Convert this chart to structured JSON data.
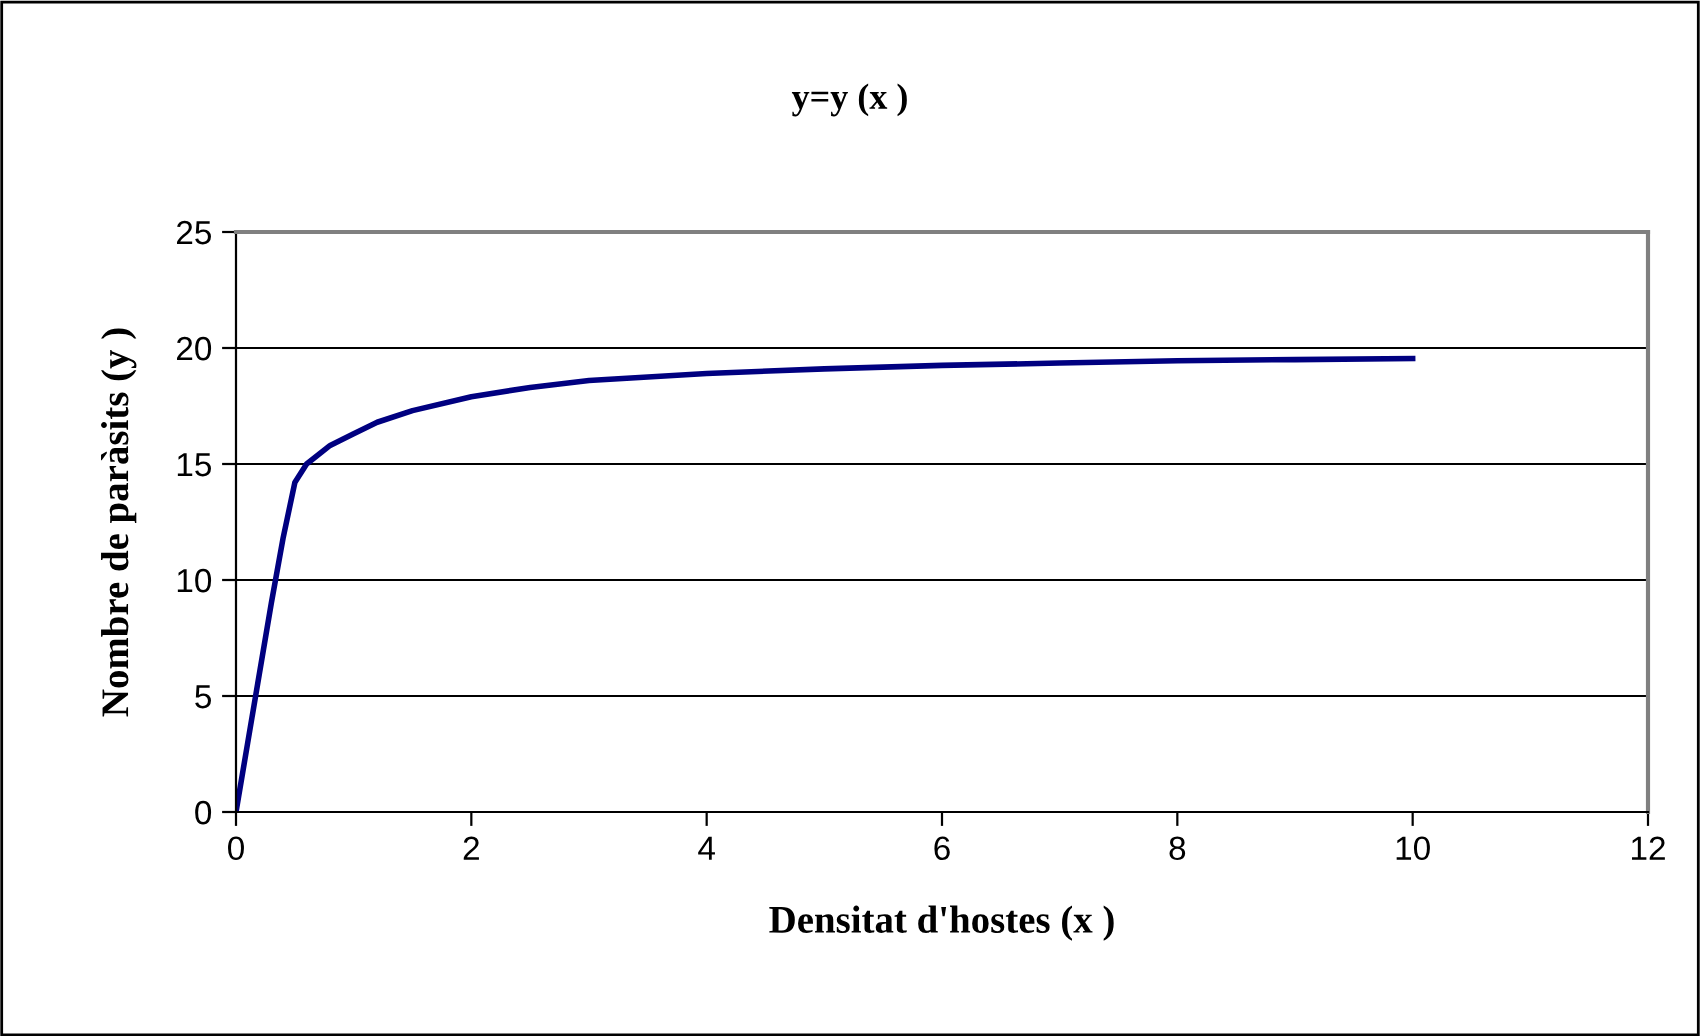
{
  "chart_data": {
    "type": "line",
    "title": "y=y (x )",
    "xlabel": "Densitat d'hostes (x )",
    "ylabel": "Nombre de paràsits (y )",
    "x": [
      0,
      0.1,
      0.2,
      0.3,
      0.4,
      0.5,
      0.6,
      0.8,
      1.0,
      1.2,
      1.5,
      2,
      2.5,
      3,
      4,
      5,
      6,
      7,
      8,
      9,
      10
    ],
    "series": [
      {
        "color": "#000080",
        "values": [
          0,
          3,
          6,
          9,
          11.8,
          14.2,
          15,
          15.8,
          16.3,
          16.8,
          17.3,
          17.9,
          18.3,
          18.6,
          18.9,
          19.1,
          19.25,
          19.35,
          19.45,
          19.5,
          19.55
        ]
      }
    ],
    "xlim": [
      0,
      12
    ],
    "xticks": [
      0,
      2,
      4,
      6,
      8,
      10,
      12
    ],
    "ylim": [
      0,
      25
    ],
    "yticks": [
      0,
      5,
      10,
      15,
      20,
      25
    ],
    "grid": "y",
    "legend": false,
    "marker": "none",
    "line_style": "solid"
  }
}
